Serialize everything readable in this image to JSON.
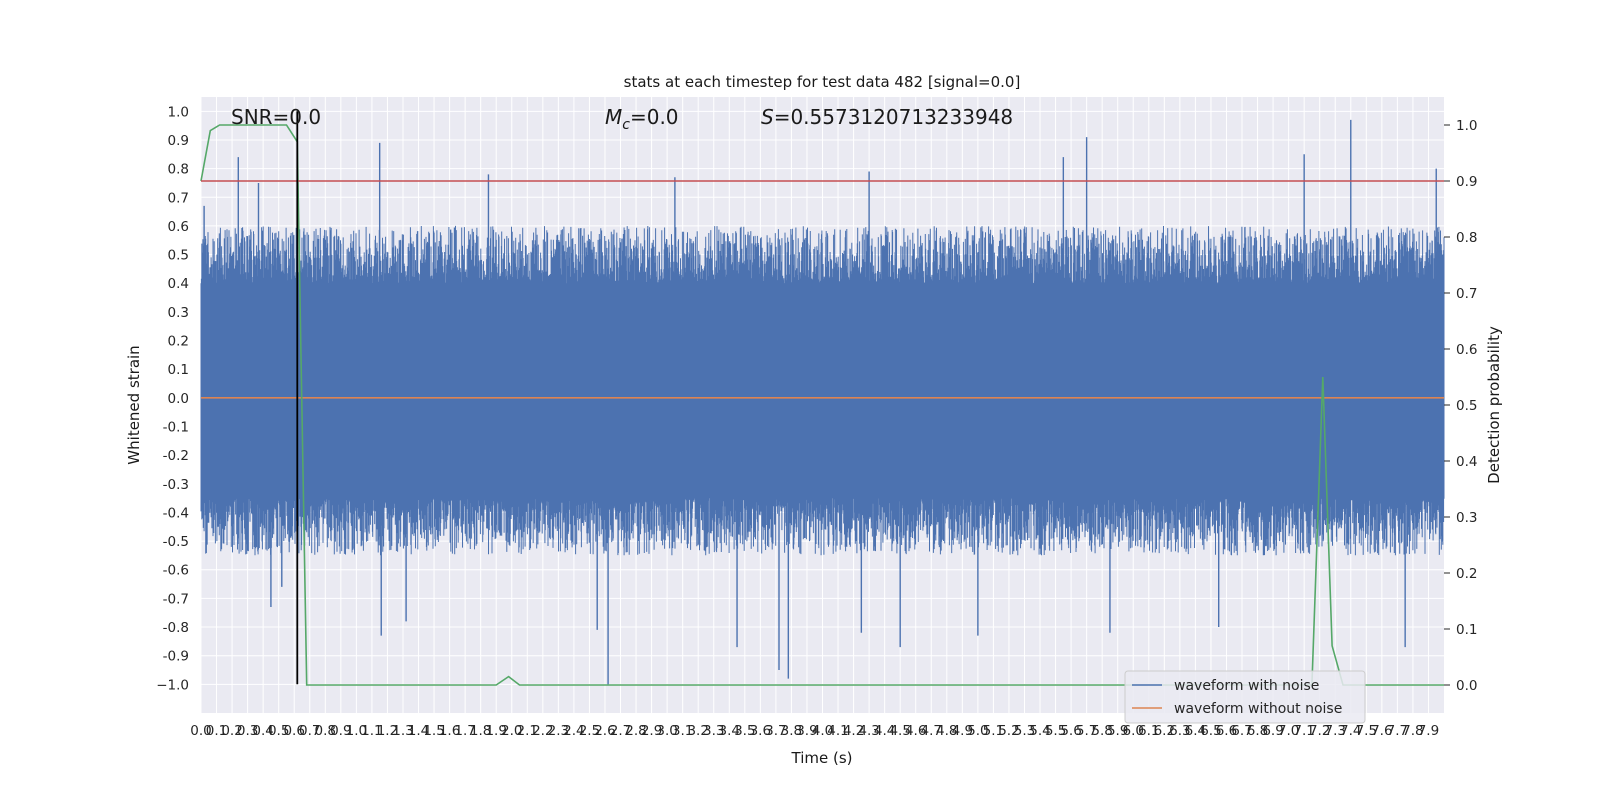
{
  "chart_data": {
    "type": "line",
    "title": "stats at each timestep for test data 482 [signal=0.0]",
    "xlabel": "Time (s)",
    "ylabel": "Whitened strain",
    "y2label": "Detection probability",
    "xlim": [
      0.0,
      8.0
    ],
    "ylim": [
      -1.1,
      1.05
    ],
    "y2lim": [
      -0.05,
      1.05
    ],
    "x_ticks": [
      "0.0",
      "0.1",
      "0.2",
      "0.3",
      "0.4",
      "0.5",
      "0.6",
      "0.7",
      "0.8",
      "0.9",
      "1.0",
      "1.1",
      "1.2",
      "1.3",
      "1.4",
      "1.5",
      "1.6",
      "1.7",
      "1.8",
      "1.9",
      "2.0",
      "2.1",
      "2.2",
      "2.3",
      "2.4",
      "2.5",
      "2.6",
      "2.7",
      "2.8",
      "2.9",
      "3.0",
      "3.1",
      "3.2",
      "3.3",
      "3.4",
      "3.5",
      "3.6",
      "3.7",
      "3.8",
      "3.9",
      "4.0",
      "4.1",
      "4.2",
      "4.3",
      "4.4",
      "4.5",
      "4.6",
      "4.7",
      "4.8",
      "4.9",
      "5.0",
      "5.1",
      "5.2",
      "5.3",
      "5.4",
      "5.5",
      "5.6",
      "5.7",
      "5.8",
      "5.9",
      "6.0",
      "6.1",
      "6.2",
      "6.3",
      "6.4",
      "6.5",
      "6.6",
      "6.7",
      "6.8",
      "6.9",
      "7.0",
      "7.1",
      "7.2",
      "7.3",
      "7.4",
      "7.5",
      "7.6",
      "7.7",
      "7.8",
      "7.9"
    ],
    "y_ticks": [
      "1.0",
      "0.9",
      "0.8",
      "0.7",
      "0.6",
      "0.5",
      "0.4",
      "0.3",
      "0.2",
      "0.1",
      "0.0",
      "-0.1",
      "-0.2",
      "-0.3",
      "-0.4",
      "-0.5",
      "-0.6",
      "-0.7",
      "-0.8",
      "-0.9",
      "−1.0"
    ],
    "y2_ticks": [
      "1.0",
      "0.9",
      "0.8",
      "0.7",
      "0.6",
      "0.5",
      "0.4",
      "0.3",
      "0.2",
      "0.1",
      "0.0"
    ],
    "annotations": {
      "snr": "SNR=0.0",
      "mc_symbol": "M",
      "mc_sub": "c",
      "mc_value": "=0.0",
      "s_symbol": "S",
      "s_value": "=0.5573120713233948"
    },
    "legend": {
      "placement": "lower-right",
      "entries": [
        "waveform with noise",
        "waveform without noise"
      ]
    },
    "grid": true,
    "series": [
      {
        "name": "waveform with noise",
        "axis": "left",
        "color": "#4c72b0",
        "note_noise_envelope": {
          "typical_upper": [
            0.4,
            0.6
          ],
          "typical_lower": [
            -0.35,
            -0.55
          ],
          "x_range": [
            0.0,
            8.0
          ]
        },
        "peaks": [
          [
            0.02,
            0.67
          ],
          [
            0.24,
            0.84
          ],
          [
            0.37,
            0.75
          ],
          [
            0.45,
            -0.73
          ],
          [
            0.52,
            -0.66
          ],
          [
            1.15,
            0.89
          ],
          [
            1.16,
            -0.83
          ],
          [
            1.32,
            -0.78
          ],
          [
            1.85,
            0.78
          ],
          [
            2.55,
            -0.81
          ],
          [
            2.62,
            -1.0
          ],
          [
            3.05,
            0.77
          ],
          [
            3.45,
            -0.87
          ],
          [
            3.72,
            -0.95
          ],
          [
            3.78,
            -0.98
          ],
          [
            4.3,
            0.79
          ],
          [
            4.25,
            -0.82
          ],
          [
            4.5,
            -0.87
          ],
          [
            5.0,
            -0.83
          ],
          [
            5.55,
            0.84
          ],
          [
            5.7,
            0.91
          ],
          [
            5.85,
            -0.82
          ],
          [
            6.55,
            -0.8
          ],
          [
            7.1,
            0.85
          ],
          [
            7.4,
            0.97
          ],
          [
            7.75,
            -0.87
          ],
          [
            7.95,
            0.8
          ]
        ]
      },
      {
        "name": "waveform without noise",
        "axis": "left",
        "color": "#dd8452",
        "x": [
          0.0,
          8.0
        ],
        "y": [
          0.0,
          0.0
        ]
      },
      {
        "axis": "right",
        "color": "#55a868",
        "x": [
          0.0,
          0.06,
          0.12,
          0.55,
          0.62,
          0.68,
          1.9,
          1.98,
          2.05,
          2.12,
          7.15,
          7.22,
          7.28,
          7.35,
          7.42,
          8.0
        ],
        "y": [
          0.9,
          0.99,
          1.0,
          1.0,
          0.97,
          0.0,
          0.0,
          0.015,
          0.0,
          0.0,
          0.0,
          0.55,
          0.07,
          0.0,
          0.0,
          0.0
        ]
      },
      {
        "axis": "right",
        "color": "#c44e52",
        "x": [
          0.0,
          8.0
        ],
        "y": [
          0.9,
          0.9
        ]
      },
      {
        "axis": "left",
        "color": "#000000",
        "x": [
          0.62,
          0.62
        ],
        "y": [
          -1.0,
          1.0
        ]
      }
    ]
  }
}
